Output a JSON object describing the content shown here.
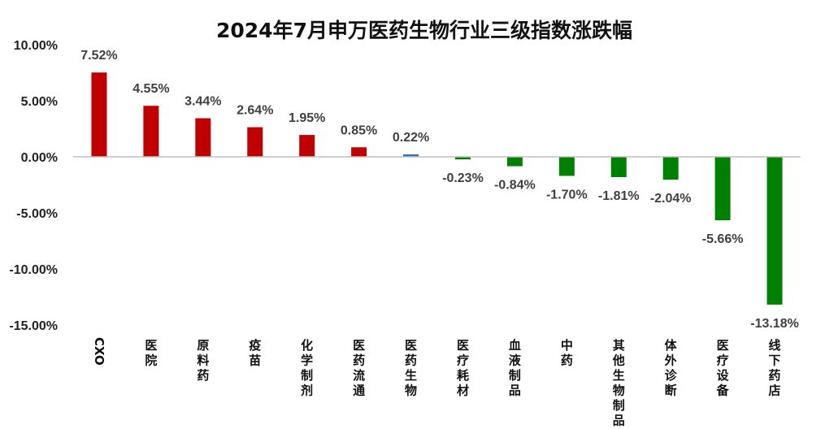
{
  "chart_data": {
    "type": "bar",
    "title": "2024年7月申万医药生物行业三级指数涨跌幅",
    "categories": [
      "CXO",
      "医院",
      "原料药",
      "疫苗",
      "化学制剂",
      "医药流通",
      "医药生物",
      "医疗耗材",
      "血液制品",
      "中药",
      "其他生物制品",
      "体外诊断",
      "医疗设备",
      "线下药店"
    ],
    "values": [
      7.52,
      4.55,
      3.44,
      2.64,
      1.95,
      0.85,
      0.22,
      -0.23,
      -0.84,
      -1.7,
      -1.81,
      -2.04,
      -5.66,
      -13.18
    ],
    "data_labels": [
      "7.52%",
      "4.55%",
      "3.44%",
      "2.64%",
      "1.95%",
      "0.85%",
      "0.22%",
      "-0.23%",
      "-0.84%",
      "-1.70%",
      "-1.81%",
      "-2.04%",
      "-5.66%",
      "-13.18%"
    ],
    "ylim": [
      -15,
      10
    ],
    "yticks": [
      10,
      5,
      0,
      -5,
      -10,
      -15
    ],
    "ytick_labels": [
      "10.00%",
      "5.00%",
      "0.00%",
      "-5.00%",
      "-10.00%",
      "-15.00%"
    ],
    "xlabel": "",
    "ylabel": "",
    "grid": false,
    "legend": "none",
    "colors": {
      "positive": "#C00000",
      "negative": "#008000",
      "highlight": "#2E75B6",
      "axis": "#BFBFBF"
    },
    "highlight_category": "医药生物"
  }
}
